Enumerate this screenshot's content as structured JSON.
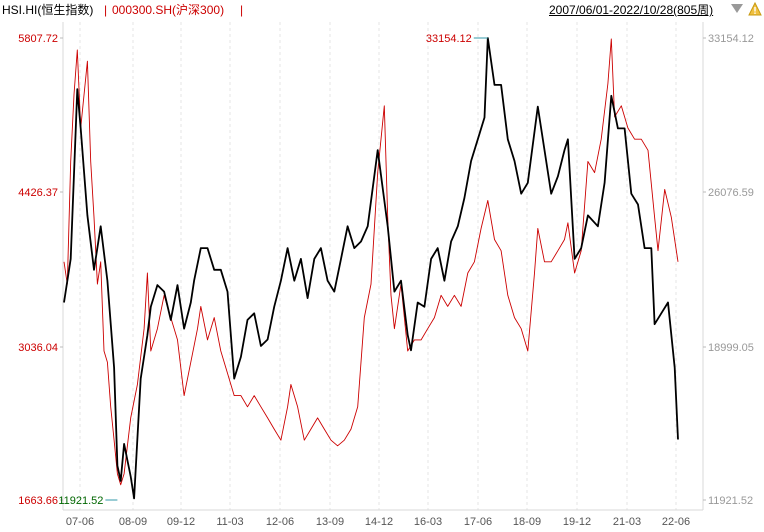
{
  "header": {
    "series1_label": "HSI.HI(恒生指数)",
    "separator1": "|",
    "series2_label": "000300.SH(沪深300)",
    "separator2": "|",
    "range_label": "2007/06/01-2022/10/28(805周)",
    "colors": {
      "series1": "#000000",
      "series2": "#cc0000",
      "separator": "#cc0000",
      "range": "#000000"
    }
  },
  "chart_data": {
    "type": "line",
    "x_ticks": [
      "07-06",
      "08-09",
      "09-12",
      "11-03",
      "12-06",
      "13-09",
      "14-12",
      "16-03",
      "17-06",
      "18-09",
      "19-12",
      "21-03",
      "22-06"
    ],
    "left_axis": {
      "series": "000300.SH(沪深300)",
      "ticks": [
        "5807.72",
        "4426.37",
        "3036.04",
        "1663.66"
      ],
      "range": [
        1663.66,
        5807.72
      ],
      "color": "#cc0000"
    },
    "right_axis": {
      "series": "HSI.HI(恒生指数)",
      "ticks": [
        "33154.12",
        "26076.59",
        "18999.05",
        "11921.52"
      ],
      "range": [
        11921.52,
        33154.12
      ],
      "color": "#999999"
    },
    "annotations": [
      {
        "label": "33154.12",
        "x": "2018-01",
        "color": "#cc0000"
      },
      {
        "label": "11921.52",
        "x": "2008-10",
        "color": "#006600"
      }
    ],
    "grid": "vertical",
    "series": [
      {
        "name": "HSI.HI(恒生指数)",
        "color": "#000000",
        "axis": "right",
        "points": [
          [
            "2007-06",
            21000
          ],
          [
            "2007-08",
            23000
          ],
          [
            "2007-10",
            30800
          ],
          [
            "2007-11",
            29000
          ],
          [
            "2008-01",
            25000
          ],
          [
            "2008-03",
            22500
          ],
          [
            "2008-05",
            24500
          ],
          [
            "2008-07",
            22000
          ],
          [
            "2008-09",
            18000
          ],
          [
            "2008-10",
            13500
          ],
          [
            "2008-11",
            12800
          ],
          [
            "2008-12",
            14500
          ],
          [
            "2009-02",
            13000
          ],
          [
            "2009-03",
            12000
          ],
          [
            "2009-05",
            17500
          ],
          [
            "2009-07",
            19500
          ],
          [
            "2009-08",
            20800
          ],
          [
            "2009-10",
            21800
          ],
          [
            "2009-12",
            21500
          ],
          [
            "2010-02",
            20200
          ],
          [
            "2010-04",
            21800
          ],
          [
            "2010-06",
            19800
          ],
          [
            "2010-08",
            21000
          ],
          [
            "2010-09",
            22000
          ],
          [
            "2010-11",
            23500
          ],
          [
            "2011-01",
            23500
          ],
          [
            "2011-03",
            22500
          ],
          [
            "2011-05",
            22500
          ],
          [
            "2011-07",
            21500
          ],
          [
            "2011-09",
            17500
          ],
          [
            "2011-11",
            18500
          ],
          [
            "2012-01",
            20200
          ],
          [
            "2012-03",
            20500
          ],
          [
            "2012-05",
            19000
          ],
          [
            "2012-07",
            19300
          ],
          [
            "2012-09",
            20800
          ],
          [
            "2012-11",
            22000
          ],
          [
            "2013-01",
            23500
          ],
          [
            "2013-03",
            22000
          ],
          [
            "2013-05",
            23000
          ],
          [
            "2013-07",
            21200
          ],
          [
            "2013-09",
            23000
          ],
          [
            "2013-11",
            23500
          ],
          [
            "2014-01",
            22000
          ],
          [
            "2014-03",
            21500
          ],
          [
            "2014-05",
            23000
          ],
          [
            "2014-07",
            24500
          ],
          [
            "2014-09",
            23500
          ],
          [
            "2014-11",
            23800
          ],
          [
            "2015-01",
            24500
          ],
          [
            "2015-04",
            28000
          ],
          [
            "2015-07",
            24500
          ],
          [
            "2015-09",
            21500
          ],
          [
            "2015-11",
            22000
          ],
          [
            "2016-01",
            19500
          ],
          [
            "2016-02",
            18800
          ],
          [
            "2016-04",
            21000
          ],
          [
            "2016-06",
            20800
          ],
          [
            "2016-08",
            23000
          ],
          [
            "2016-10",
            23500
          ],
          [
            "2016-12",
            22000
          ],
          [
            "2017-02",
            23800
          ],
          [
            "2017-04",
            24500
          ],
          [
            "2017-06",
            25800
          ],
          [
            "2017-08",
            27500
          ],
          [
            "2017-10",
            28500
          ],
          [
            "2017-12",
            29500
          ],
          [
            "2018-01",
            33154
          ],
          [
            "2018-03",
            31000
          ],
          [
            "2018-05",
            31000
          ],
          [
            "2018-07",
            28500
          ],
          [
            "2018-09",
            27500
          ],
          [
            "2018-11",
            26000
          ],
          [
            "2019-01",
            26500
          ],
          [
            "2019-04",
            30000
          ],
          [
            "2019-06",
            28000
          ],
          [
            "2019-08",
            26000
          ],
          [
            "2019-10",
            26800
          ],
          [
            "2019-12",
            28000
          ],
          [
            "2020-01",
            28500
          ],
          [
            "2020-03",
            23000
          ],
          [
            "2020-05",
            23500
          ],
          [
            "2020-07",
            25000
          ],
          [
            "2020-10",
            24500
          ],
          [
            "2020-12",
            26500
          ],
          [
            "2021-02",
            30500
          ],
          [
            "2021-04",
            29000
          ],
          [
            "2021-06",
            29000
          ],
          [
            "2021-08",
            26000
          ],
          [
            "2021-10",
            25500
          ],
          [
            "2021-12",
            23500
          ],
          [
            "2022-02",
            23500
          ],
          [
            "2022-03",
            20000
          ],
          [
            "2022-05",
            20500
          ],
          [
            "2022-07",
            21000
          ],
          [
            "2022-09",
            18000
          ],
          [
            "2022-10",
            14700
          ]
        ]
      },
      {
        "name": "000300.SH(沪深300)",
        "color": "#cc0000",
        "axis": "left",
        "points": [
          [
            "2007-06",
            3800
          ],
          [
            "2007-07",
            3600
          ],
          [
            "2007-08",
            4700
          ],
          [
            "2007-09",
            5300
          ],
          [
            "2007-10",
            5700
          ],
          [
            "2007-11",
            5000
          ],
          [
            "2008-01",
            5600
          ],
          [
            "2008-02",
            4700
          ],
          [
            "2008-03",
            4200
          ],
          [
            "2008-04",
            3600
          ],
          [
            "2008-05",
            3800
          ],
          [
            "2008-06",
            3000
          ],
          [
            "2008-07",
            2900
          ],
          [
            "2008-08",
            2500
          ],
          [
            "2008-09",
            2200
          ],
          [
            "2008-10",
            1900
          ],
          [
            "2008-11",
            1800
          ],
          [
            "2008-12",
            1900
          ],
          [
            "2009-02",
            2400
          ],
          [
            "2009-04",
            2700
          ],
          [
            "2009-06",
            3200
          ],
          [
            "2009-07",
            3700
          ],
          [
            "2009-08",
            3000
          ],
          [
            "2009-10",
            3200
          ],
          [
            "2009-12",
            3500
          ],
          [
            "2010-02",
            3300
          ],
          [
            "2010-04",
            3100
          ],
          [
            "2010-06",
            2600
          ],
          [
            "2010-08",
            2900
          ],
          [
            "2010-10",
            3200
          ],
          [
            "2010-11",
            3400
          ],
          [
            "2011-01",
            3100
          ],
          [
            "2011-03",
            3300
          ],
          [
            "2011-05",
            3000
          ],
          [
            "2011-07",
            2800
          ],
          [
            "2011-09",
            2600
          ],
          [
            "2011-11",
            2600
          ],
          [
            "2012-01",
            2500
          ],
          [
            "2012-03",
            2600
          ],
          [
            "2012-05",
            2500
          ],
          [
            "2012-07",
            2400
          ],
          [
            "2012-09",
            2300
          ],
          [
            "2012-11",
            2200
          ],
          [
            "2013-01",
            2500
          ],
          [
            "2013-02",
            2700
          ],
          [
            "2013-04",
            2500
          ],
          [
            "2013-06",
            2200
          ],
          [
            "2013-08",
            2300
          ],
          [
            "2013-10",
            2400
          ],
          [
            "2013-12",
            2300
          ],
          [
            "2014-02",
            2200
          ],
          [
            "2014-04",
            2150
          ],
          [
            "2014-06",
            2200
          ],
          [
            "2014-08",
            2300
          ],
          [
            "2014-10",
            2500
          ],
          [
            "2014-12",
            3300
          ],
          [
            "2015-02",
            3600
          ],
          [
            "2015-04",
            4600
          ],
          [
            "2015-06",
            5200
          ],
          [
            "2015-07",
            4200
          ],
          [
            "2015-08",
            3500
          ],
          [
            "2015-09",
            3200
          ],
          [
            "2015-11",
            3600
          ],
          [
            "2016-01",
            3000
          ],
          [
            "2016-03",
            3100
          ],
          [
            "2016-05",
            3100
          ],
          [
            "2016-07",
            3200
          ],
          [
            "2016-09",
            3300
          ],
          [
            "2016-11",
            3500
          ],
          [
            "2017-01",
            3400
          ],
          [
            "2017-03",
            3500
          ],
          [
            "2017-05",
            3400
          ],
          [
            "2017-07",
            3700
          ],
          [
            "2017-09",
            3800
          ],
          [
            "2017-11",
            4100
          ],
          [
            "2018-01",
            4350
          ],
          [
            "2018-03",
            4000
          ],
          [
            "2018-05",
            3900
          ],
          [
            "2018-07",
            3500
          ],
          [
            "2018-09",
            3300
          ],
          [
            "2018-11",
            3200
          ],
          [
            "2019-01",
            3000
          ],
          [
            "2019-03",
            3700
          ],
          [
            "2019-04",
            4100
          ],
          [
            "2019-06",
            3800
          ],
          [
            "2019-08",
            3800
          ],
          [
            "2019-10",
            3900
          ],
          [
            "2019-12",
            4000
          ],
          [
            "2020-01",
            4150
          ],
          [
            "2020-03",
            3700
          ],
          [
            "2020-05",
            3900
          ],
          [
            "2020-07",
            4700
          ],
          [
            "2020-09",
            4600
          ],
          [
            "2020-11",
            4900
          ],
          [
            "2021-01",
            5400
          ],
          [
            "2021-02",
            5800
          ],
          [
            "2021-03",
            5100
          ],
          [
            "2021-05",
            5200
          ],
          [
            "2021-07",
            5000
          ],
          [
            "2021-09",
            4900
          ],
          [
            "2021-11",
            4900
          ],
          [
            "2022-01",
            4800
          ],
          [
            "2022-03",
            4200
          ],
          [
            "2022-04",
            3900
          ],
          [
            "2022-06",
            4450
          ],
          [
            "2022-08",
            4200
          ],
          [
            "2022-10",
            3800
          ]
        ]
      }
    ]
  }
}
